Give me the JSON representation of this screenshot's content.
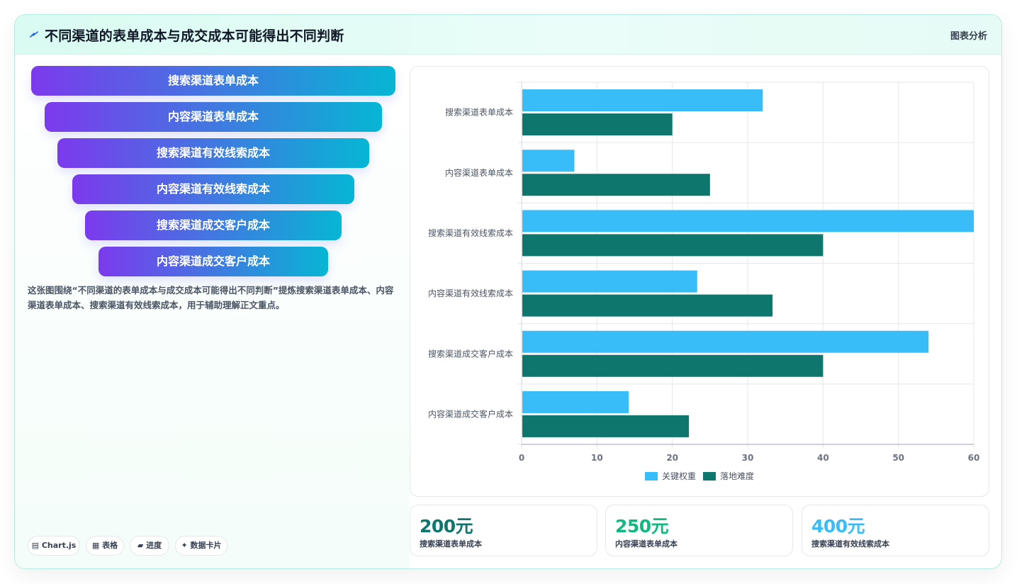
{
  "header": {
    "title": "不同渠道的表单成本与成交成本可能得出不同判断",
    "tag": "图表分析"
  },
  "funnel": [
    "搜索渠道表单成本",
    "内容渠道表单成本",
    "搜索渠道有效线索成本",
    "内容渠道有效线索成本",
    "搜索渠道成交客户成本",
    "内容渠道成交客户成本"
  ],
  "description": "这张图围绕“不同渠道的表单成本与成交成本可能得出不同判断”提炼搜索渠道表单成本、内容渠道表单成本、搜索渠道有效线索成本，用于辅助理解正文重点。",
  "pills": [
    "▤ Chart.js",
    "▦ 表格",
    "▰ 进度",
    "✦ 数据卡片"
  ],
  "kpis": [
    {
      "value": "200元",
      "label": "搜索渠道表单成本",
      "color": "#0f766e"
    },
    {
      "value": "250元",
      "label": "内容渠道表单成本",
      "color": "#10b981"
    },
    {
      "value": "400元",
      "label": "搜索渠道有效线索成本",
      "color": "#38bdf8"
    }
  ],
  "chart_data": {
    "type": "bar",
    "orientation": "horizontal",
    "categories": [
      "搜索渠道表单成本",
      "内容渠道表单成本",
      "搜索渠道有效线索成本",
      "内容渠道有效线索成本",
      "搜索渠道成交客户成本",
      "内容渠道成交客户成本"
    ],
    "series": [
      {
        "name": "关键权重",
        "color": "#38bdf8",
        "values": [
          32,
          7,
          60,
          23.3,
          54,
          14.2
        ]
      },
      {
        "name": "落地难度",
        "color": "#0f766e",
        "values": [
          20,
          25,
          40,
          33.3,
          40,
          22.2
        ]
      }
    ],
    "xlim": [
      0,
      60
    ],
    "xticks": [
      0,
      10,
      20,
      30,
      40,
      50,
      60
    ],
    "grid": true,
    "legend": "bottom"
  }
}
